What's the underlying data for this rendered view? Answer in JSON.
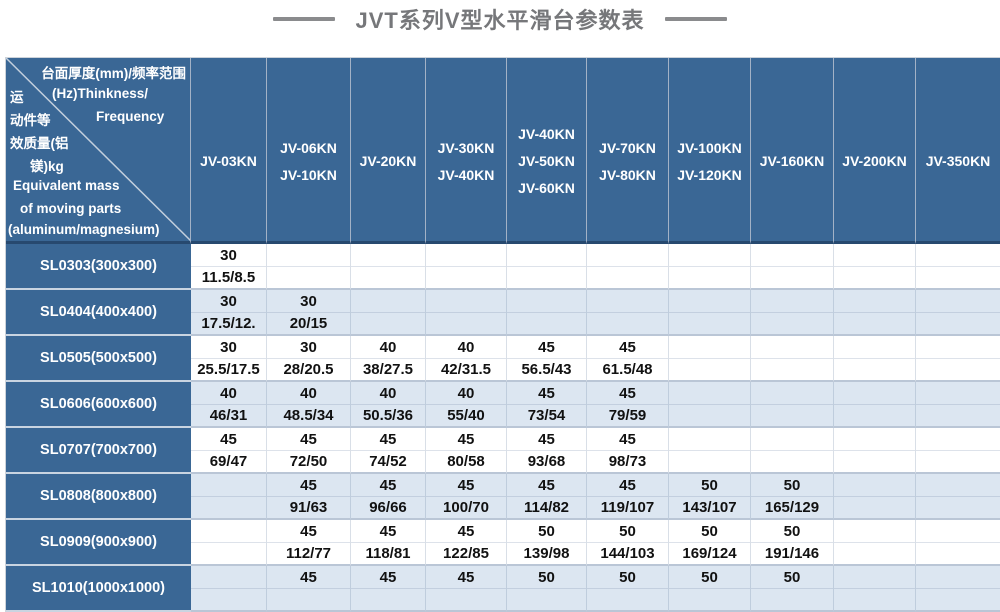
{
  "title": "JVT系列V型水平滑台参数表",
  "colors": {
    "header_blue": "#3a6795",
    "header_border_dark": "#27496f",
    "row_light_blue": "#dce6f1",
    "row_white": "#ffffff",
    "title_gray": "#76777a",
    "data_text": "#111111"
  },
  "corner": {
    "line1": "台面厚度(mm)/频率范围",
    "line2_left": "运",
    "line2_right": "(Hz)Thinkness/",
    "line3_left": "动件等",
    "line3_right": "Frequency",
    "line4": "效质量(铝",
    "line5": "镁)kg",
    "line6": "Equivalent mass",
    "line7": "of moving parts",
    "line8": "(aluminum/magnesium)"
  },
  "table": {
    "column_headers": [
      [
        "JV-03KN"
      ],
      [
        "JV-06KN",
        "JV-10KN"
      ],
      [
        "JV-20KN"
      ],
      [
        "JV-30KN",
        "JV-40KN"
      ],
      [
        "JV-40KN",
        "JV-50KN",
        "JV-60KN"
      ],
      [
        "JV-70KN",
        "JV-80KN"
      ],
      [
        "JV-100KN",
        "JV-120KN"
      ],
      [
        "JV-160KN"
      ],
      [
        "JV-200KN"
      ],
      [
        "JV-350KN"
      ]
    ],
    "rows": [
      {
        "model": "SL0303(300x300)",
        "cells": [
          [
            "30",
            "11.5/8.5"
          ],
          null,
          null,
          null,
          null,
          null,
          null,
          null,
          null,
          null
        ]
      },
      {
        "model": "SL0404(400x400)",
        "cells": [
          [
            "30",
            "17.5/12."
          ],
          [
            "30",
            "20/15"
          ],
          null,
          null,
          null,
          null,
          null,
          null,
          null,
          null
        ]
      },
      {
        "model": "SL0505(500x500)",
        "cells": [
          [
            "30",
            "25.5/17.5"
          ],
          [
            "30",
            "28/20.5"
          ],
          [
            "40",
            "38/27.5"
          ],
          [
            "40",
            "42/31.5"
          ],
          [
            "45",
            "56.5/43"
          ],
          [
            "45",
            "61.5/48"
          ],
          null,
          null,
          null,
          null
        ]
      },
      {
        "model": "SL0606(600x600)",
        "cells": [
          [
            "40",
            "46/31"
          ],
          [
            "40",
            "48.5/34"
          ],
          [
            "40",
            "50.5/36"
          ],
          [
            "40",
            "55/40"
          ],
          [
            "45",
            "73/54"
          ],
          [
            "45",
            "79/59"
          ],
          null,
          null,
          null,
          null
        ]
      },
      {
        "model": "SL0707(700x700)",
        "cells": [
          [
            "45",
            "69/47"
          ],
          [
            "45",
            "72/50"
          ],
          [
            "45",
            "74/52"
          ],
          [
            "45",
            "80/58"
          ],
          [
            "45",
            "93/68"
          ],
          [
            "45",
            "98/73"
          ],
          null,
          null,
          null,
          null
        ]
      },
      {
        "model": "SL0808(800x800)",
        "cells": [
          null,
          [
            "45",
            "91/63"
          ],
          [
            "45",
            "96/66"
          ],
          [
            "45",
            "100/70"
          ],
          [
            "45",
            "114/82"
          ],
          [
            "45",
            "119/107"
          ],
          [
            "50",
            "143/107"
          ],
          [
            "50",
            "165/129"
          ],
          null,
          null
        ]
      },
      {
        "model": "SL0909(900x900)",
        "cells": [
          null,
          [
            "45",
            "112/77"
          ],
          [
            "45",
            "118/81"
          ],
          [
            "45",
            "122/85"
          ],
          [
            "50",
            "139/98"
          ],
          [
            "50",
            "144/103"
          ],
          [
            "50",
            "169/124"
          ],
          [
            "50",
            "191/146"
          ],
          null,
          null
        ]
      },
      {
        "model": "SL1010(1000x1000)",
        "cells": [
          null,
          [
            "45",
            ""
          ],
          [
            "45",
            ""
          ],
          [
            "45",
            ""
          ],
          [
            "50",
            ""
          ],
          [
            "50",
            ""
          ],
          [
            "50",
            ""
          ],
          [
            "50",
            ""
          ],
          null,
          null
        ]
      }
    ]
  }
}
